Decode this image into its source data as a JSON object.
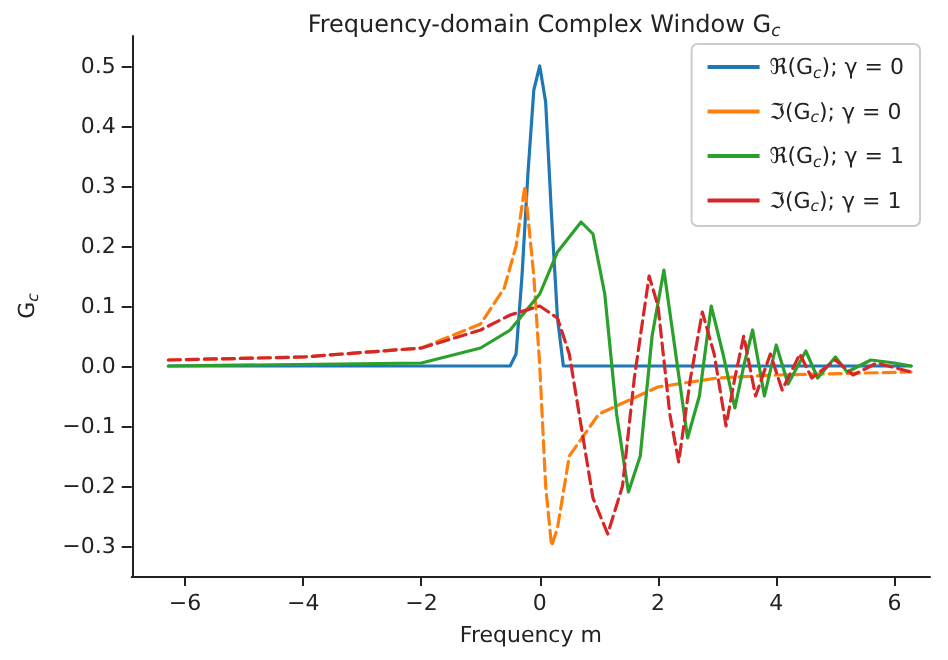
{
  "chart_data": {
    "type": "line",
    "title": "Frequency-domain Complex Window G$_{c}$",
    "xlabel": "Frequency m",
    "ylabel": "G$_{c}$",
    "xlim": [
      -6.9,
      6.6
    ],
    "ylim": [
      -0.35,
      0.55
    ],
    "xticks": [
      {
        "value": -6,
        "label": "−6"
      },
      {
        "value": -4,
        "label": "−4"
      },
      {
        "value": -2,
        "label": "−2"
      },
      0,
      2,
      4,
      6
    ],
    "yticks": [
      {
        "value": -0.3,
        "label": "−0.3"
      },
      {
        "value": -0.2,
        "label": "−0.2"
      },
      {
        "value": -0.1,
        "label": "−0.1"
      },
      {
        "value": 0,
        "label": "0.0"
      },
      0.1,
      0.2,
      0.3,
      0.4,
      0.5
    ],
    "grid": false,
    "legend": "top right",
    "marker": "none",
    "series": [
      {
        "name": "ℜ(G$_{c}$); γ = 0",
        "color": "#1f77b4",
        "line_style": "solid",
        "x": [
          -6.28,
          -0.5,
          -0.4,
          -0.3,
          -0.2,
          -0.1,
          0,
          0.1,
          0.2,
          0.3,
          0.4,
          6.28
        ],
        "values": [
          0,
          0,
          0.02,
          0.15,
          0.32,
          0.46,
          0.5,
          0.44,
          0.25,
          0.08,
          0,
          0
        ]
      },
      {
        "name": "ℑ(G$_{c}$); γ = 0",
        "color": "#ff7f0e",
        "line_style": "dashed",
        "x": [
          -6.28,
          -4,
          -2,
          -1,
          -0.6,
          -0.4,
          -0.25,
          -0.1,
          0,
          0.1,
          0.2,
          0.3,
          0.5,
          1,
          2,
          3,
          4,
          6.28
        ],
        "values": [
          0.01,
          0.015,
          0.03,
          0.07,
          0.13,
          0.2,
          0.3,
          0.15,
          0,
          -0.2,
          -0.3,
          -0.27,
          -0.15,
          -0.08,
          -0.035,
          -0.02,
          -0.015,
          -0.01
        ]
      },
      {
        "name": "ℜ(G$_{c}$); γ = 1",
        "color": "#2ca02c",
        "line_style": "solid",
        "x": [
          -6.28,
          -2,
          -1,
          -0.5,
          0,
          0.3,
          0.7,
          0.9,
          1.1,
          1.3,
          1.5,
          1.7,
          1.9,
          2.1,
          2.3,
          2.5,
          2.7,
          2.9,
          3.1,
          3.3,
          3.45,
          3.6,
          3.8,
          4.0,
          4.2,
          4.5,
          4.7,
          5.0,
          5.2,
          5.6,
          6.0,
          6.28
        ],
        "values": [
          0,
          0.005,
          0.03,
          0.06,
          0.12,
          0.19,
          0.24,
          0.22,
          0.12,
          -0.08,
          -0.21,
          -0.15,
          0.05,
          0.16,
          0.02,
          -0.12,
          -0.05,
          0.1,
          0.02,
          -0.07,
          0,
          0.06,
          -0.05,
          0.035,
          -0.03,
          0.025,
          -0.02,
          0.015,
          -0.01,
          0.01,
          0.005,
          0
        ]
      },
      {
        "name": "ℑ(G$_{c}$); γ = 1",
        "color": "#d62728",
        "line_style": "dashed",
        "x": [
          -6.28,
          -4,
          -2,
          -1,
          -0.5,
          0,
          0.3,
          0.5,
          0.7,
          0.9,
          1.15,
          1.4,
          1.6,
          1.85,
          2.0,
          2.2,
          2.35,
          2.55,
          2.75,
          2.95,
          3.15,
          3.3,
          3.45,
          3.65,
          3.9,
          4.1,
          4.4,
          4.6,
          5.0,
          5.3,
          5.7,
          6.28
        ],
        "values": [
          0.01,
          0.015,
          0.03,
          0.06,
          0.085,
          0.1,
          0.08,
          0.02,
          -0.1,
          -0.22,
          -0.28,
          -0.2,
          -0.02,
          0.15,
          0.1,
          -0.08,
          -0.16,
          -0.02,
          0.09,
          0.02,
          -0.1,
          -0.02,
          0.05,
          -0.05,
          0.02,
          -0.04,
          0.02,
          -0.02,
          0.01,
          -0.015,
          0.005,
          -0.01
        ]
      }
    ]
  }
}
